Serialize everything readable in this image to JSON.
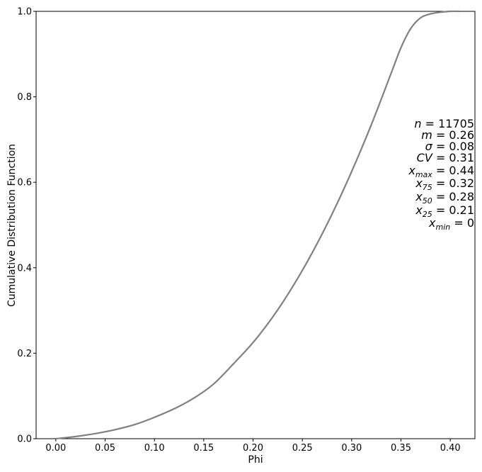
{
  "chart_data": {
    "type": "line",
    "title": "",
    "xlabel": "Phi",
    "ylabel": "Cumulative Distribution Function",
    "xlim": [
      -0.02,
      0.425
    ],
    "ylim": [
      0.0,
      1.0
    ],
    "x_ticks": [
      0.0,
      0.05,
      0.1,
      0.15,
      0.2,
      0.25,
      0.3,
      0.35,
      0.4
    ],
    "x_tick_labels": [
      "0.00",
      "0.05",
      "0.10",
      "0.15",
      "0.20",
      "0.25",
      "0.30",
      "0.35",
      "0.40"
    ],
    "y_ticks": [
      0.0,
      0.2,
      0.4,
      0.6,
      0.8,
      1.0
    ],
    "y_tick_labels": [
      "0.0",
      "0.2",
      "0.4",
      "0.6",
      "0.8",
      "1.0"
    ],
    "grid": false,
    "line_color": "#808080",
    "series": [
      {
        "x": [
          0.0,
          0.02,
          0.04,
          0.06,
          0.08,
          0.1,
          0.12,
          0.14,
          0.16,
          0.18,
          0.2,
          0.22,
          0.24,
          0.26,
          0.28,
          0.3,
          0.32,
          0.34,
          0.35,
          0.36,
          0.37,
          0.38,
          0.39,
          0.4,
          0.41
        ],
        "y": [
          0.0,
          0.005,
          0.012,
          0.021,
          0.033,
          0.05,
          0.07,
          0.095,
          0.128,
          0.175,
          0.225,
          0.285,
          0.355,
          0.435,
          0.525,
          0.625,
          0.735,
          0.855,
          0.915,
          0.96,
          0.985,
          0.994,
          0.998,
          1.0,
          1.0
        ]
      }
    ],
    "annotations": [
      {
        "lhs_main": "n",
        "lhs_sub": "",
        "rhs": "11705"
      },
      {
        "lhs_main": "m",
        "lhs_sub": "",
        "rhs": "0.26"
      },
      {
        "lhs_main": "σ",
        "lhs_sub": "",
        "rhs": "0.08"
      },
      {
        "lhs_main": "CV",
        "lhs_sub": "",
        "rhs": "0.31"
      },
      {
        "lhs_main": "x",
        "lhs_sub": "max",
        "rhs": "0.44"
      },
      {
        "lhs_main": "x",
        "lhs_sub": "75",
        "rhs": "0.32"
      },
      {
        "lhs_main": "x",
        "lhs_sub": "50",
        "rhs": "0.28"
      },
      {
        "lhs_main": "x",
        "lhs_sub": "25",
        "rhs": "0.21"
      },
      {
        "lhs_main": "x",
        "lhs_sub": "min",
        "rhs": "0"
      }
    ]
  }
}
